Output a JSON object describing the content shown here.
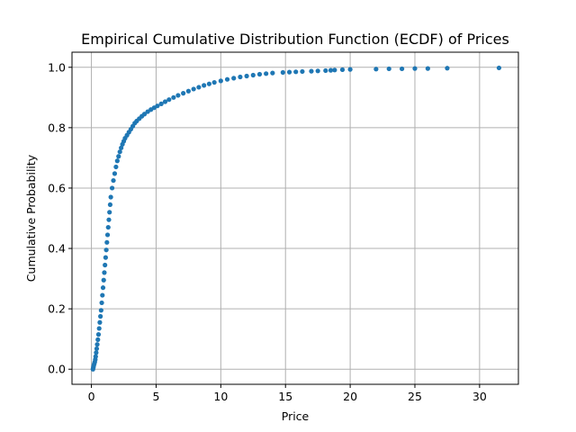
{
  "chart_data": {
    "type": "scatter",
    "title": "Empirical Cumulative Distribution Function (ECDF) of Prices",
    "xlabel": "Price",
    "ylabel": "Cumulative Probability",
    "xlim": [
      -1.5,
      33.0
    ],
    "ylim": [
      -0.05,
      1.05
    ],
    "xticks": [
      0,
      5,
      10,
      15,
      20,
      25,
      30
    ],
    "yticks": [
      0.0,
      0.2,
      0.4,
      0.6,
      0.8,
      1.0
    ],
    "xtick_labels": [
      "0",
      "5",
      "10",
      "15",
      "20",
      "25",
      "30"
    ],
    "ytick_labels": [
      "0.0",
      "0.2",
      "0.4",
      "0.6",
      "0.8",
      "1.0"
    ],
    "grid": true,
    "marker_color": "#1f77b4",
    "points": [
      [
        0.12,
        0.0
      ],
      [
        0.15,
        0.006
      ],
      [
        0.18,
        0.012
      ],
      [
        0.22,
        0.018
      ],
      [
        0.26,
        0.024
      ],
      [
        0.3,
        0.032
      ],
      [
        0.33,
        0.042
      ],
      [
        0.37,
        0.055
      ],
      [
        0.41,
        0.068
      ],
      [
        0.45,
        0.082
      ],
      [
        0.5,
        0.098
      ],
      [
        0.55,
        0.115
      ],
      [
        0.6,
        0.135
      ],
      [
        0.65,
        0.155
      ],
      [
        0.7,
        0.175
      ],
      [
        0.75,
        0.195
      ],
      [
        0.8,
        0.22
      ],
      [
        0.85,
        0.245
      ],
      [
        0.9,
        0.27
      ],
      [
        0.95,
        0.295
      ],
      [
        1.0,
        0.32
      ],
      [
        1.05,
        0.345
      ],
      [
        1.1,
        0.37
      ],
      [
        1.15,
        0.395
      ],
      [
        1.2,
        0.42
      ],
      [
        1.25,
        0.445
      ],
      [
        1.3,
        0.47
      ],
      [
        1.35,
        0.495
      ],
      [
        1.4,
        0.52
      ],
      [
        1.45,
        0.545
      ],
      [
        1.5,
        0.57
      ],
      [
        1.6,
        0.6
      ],
      [
        1.7,
        0.625
      ],
      [
        1.8,
        0.648
      ],
      [
        1.9,
        0.67
      ],
      [
        2.0,
        0.69
      ],
      [
        2.1,
        0.705
      ],
      [
        2.2,
        0.72
      ],
      [
        2.3,
        0.733
      ],
      [
        2.4,
        0.745
      ],
      [
        2.5,
        0.755
      ],
      [
        2.6,
        0.765
      ],
      [
        2.75,
        0.775
      ],
      [
        2.9,
        0.785
      ],
      [
        3.05,
        0.795
      ],
      [
        3.2,
        0.805
      ],
      [
        3.35,
        0.815
      ],
      [
        3.5,
        0.822
      ],
      [
        3.7,
        0.83
      ],
      [
        3.9,
        0.838
      ],
      [
        4.1,
        0.845
      ],
      [
        4.35,
        0.853
      ],
      [
        4.6,
        0.86
      ],
      [
        4.85,
        0.866
      ],
      [
        5.1,
        0.872
      ],
      [
        5.4,
        0.879
      ],
      [
        5.7,
        0.886
      ],
      [
        6.0,
        0.893
      ],
      [
        6.35,
        0.9
      ],
      [
        6.7,
        0.907
      ],
      [
        7.1,
        0.914
      ],
      [
        7.5,
        0.921
      ],
      [
        7.9,
        0.928
      ],
      [
        8.3,
        0.934
      ],
      [
        8.7,
        0.94
      ],
      [
        9.1,
        0.945
      ],
      [
        9.5,
        0.95
      ],
      [
        10.0,
        0.955
      ],
      [
        10.5,
        0.96
      ],
      [
        11.0,
        0.964
      ],
      [
        11.5,
        0.968
      ],
      [
        12.0,
        0.971
      ],
      [
        12.5,
        0.974
      ],
      [
        13.0,
        0.977
      ],
      [
        13.5,
        0.979
      ],
      [
        14.0,
        0.981
      ],
      [
        14.8,
        0.983
      ],
      [
        15.3,
        0.984
      ],
      [
        15.8,
        0.985
      ],
      [
        16.3,
        0.986
      ],
      [
        17.0,
        0.987
      ],
      [
        17.5,
        0.988
      ],
      [
        18.1,
        0.989
      ],
      [
        18.5,
        0.99
      ],
      [
        18.8,
        0.991
      ],
      [
        19.4,
        0.992
      ],
      [
        20.0,
        0.993
      ],
      [
        22.0,
        0.994
      ],
      [
        23.0,
        0.995
      ],
      [
        24.0,
        0.995
      ],
      [
        25.0,
        0.996
      ],
      [
        26.0,
        0.996
      ],
      [
        27.5,
        0.997
      ],
      [
        31.5,
        0.998
      ]
    ]
  }
}
